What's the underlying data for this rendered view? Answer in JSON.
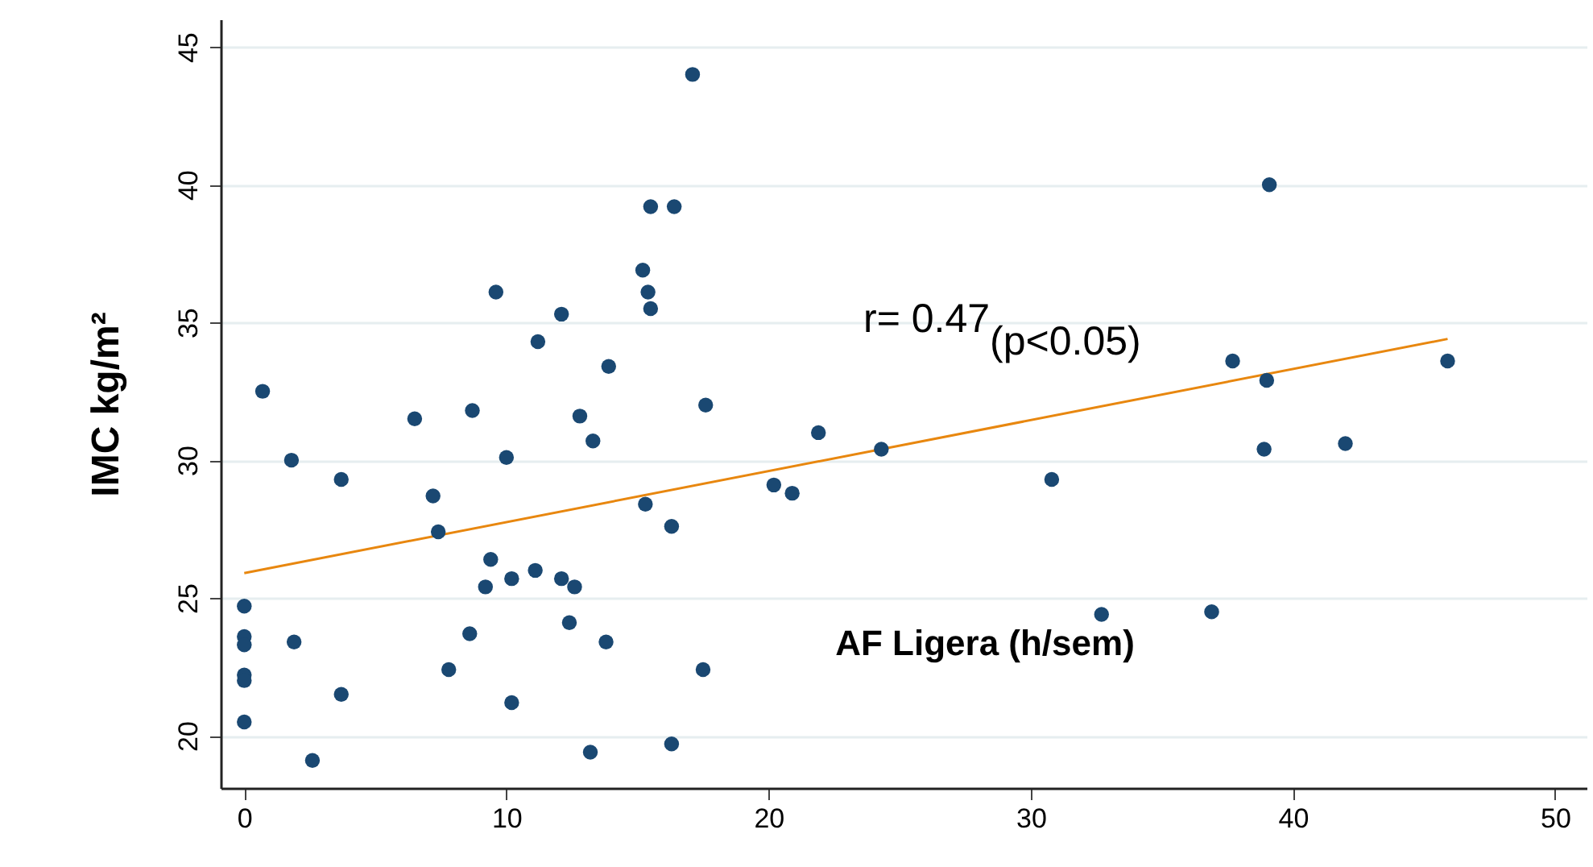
{
  "chart_data": {
    "type": "scatter",
    "xlabel": "AF Ligera (h/sem)",
    "ylabel": "IMC kg/m²",
    "xlim": [
      -0.9,
      51.2
    ],
    "ylim": [
      18.1,
      46
    ],
    "xticks": [
      0,
      10,
      20,
      30,
      40,
      50
    ],
    "yticks": [
      20,
      25,
      30,
      35,
      40,
      45
    ],
    "grid": "y",
    "marker": "circle",
    "series": [
      {
        "type": "scatter",
        "color": "#1a4872",
        "x": [
          17.1,
          15.5,
          16.4,
          15.2,
          15.4,
          15.5,
          9.6,
          12.1,
          11.2,
          13.9,
          0.7,
          6.5,
          8.7,
          12.8,
          13.3,
          17.6,
          1.8,
          10.0,
          3.7,
          7.2,
          15.3,
          16.3,
          7.4,
          9.4,
          9.2,
          10.2,
          11.1,
          12.1,
          12.6,
          0,
          0,
          0,
          1.9,
          8.6,
          12.4,
          13.8,
          0,
          0,
          7.8,
          17.5,
          3.7,
          10.2,
          0,
          2.6,
          13.2,
          16.3,
          39.1,
          37.7,
          39.0,
          45.9,
          38.9,
          42.0,
          30.8,
          24.3,
          21.9,
          20.2,
          20.9,
          32.7,
          36.9
        ],
        "values": [
          44.0,
          39.2,
          39.2,
          36.9,
          36.1,
          35.5,
          36.1,
          35.3,
          34.3,
          33.4,
          32.5,
          31.5,
          31.8,
          31.6,
          30.7,
          32.0,
          30.0,
          30.1,
          29.3,
          28.7,
          28.4,
          27.6,
          27.4,
          26.4,
          25.4,
          25.7,
          26.0,
          25.7,
          25.4,
          24.7,
          23.6,
          23.3,
          23.4,
          23.7,
          24.1,
          23.4,
          22.2,
          22.0,
          22.4,
          22.4,
          21.5,
          21.2,
          20.5,
          19.1,
          19.4,
          19.7,
          40.0,
          33.6,
          32.9,
          33.6,
          30.4,
          30.6,
          29.3,
          30.4,
          31.0,
          29.1,
          28.8,
          24.4,
          24.5
        ]
      },
      {
        "type": "line",
        "marker": "none",
        "color": "#e8870f",
        "x": [
          0,
          45.9
        ],
        "values": [
          25.9,
          34.4
        ]
      }
    ],
    "annotations": [
      "r= 0.47$_{(p<0.05)}$"
    ]
  }
}
